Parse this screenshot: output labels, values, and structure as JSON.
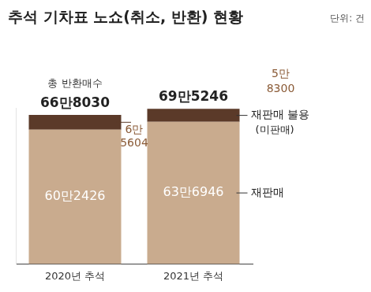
{
  "chart_data": {
    "type": "bar",
    "title": "추석 기차표 노쇼(취소, 반환) 현황",
    "subtitle": "단위: 건",
    "categories": [
      "2020년 추석",
      "2021년 추석"
    ],
    "series": [
      {
        "name": "재판매",
        "color": "#c9ab8e",
        "values": [
          602426,
          636946
        ],
        "value_labels": [
          "60만2426",
          "63만6946"
        ]
      },
      {
        "name": "재판매 불용(미판매)",
        "color": "#5b3a29",
        "values": [
          65604,
          58300
        ],
        "value_labels": [
          "6만5604",
          "5만8300"
        ]
      }
    ],
    "total_title": "총 반환매수",
    "totals": [
      668030,
      695246
    ],
    "total_labels": [
      "66만8030",
      "69만5246"
    ],
    "stacked": true,
    "data_labels": true,
    "tick_labels": "x",
    "grid": false,
    "ylim": [
      0,
      700000
    ]
  }
}
